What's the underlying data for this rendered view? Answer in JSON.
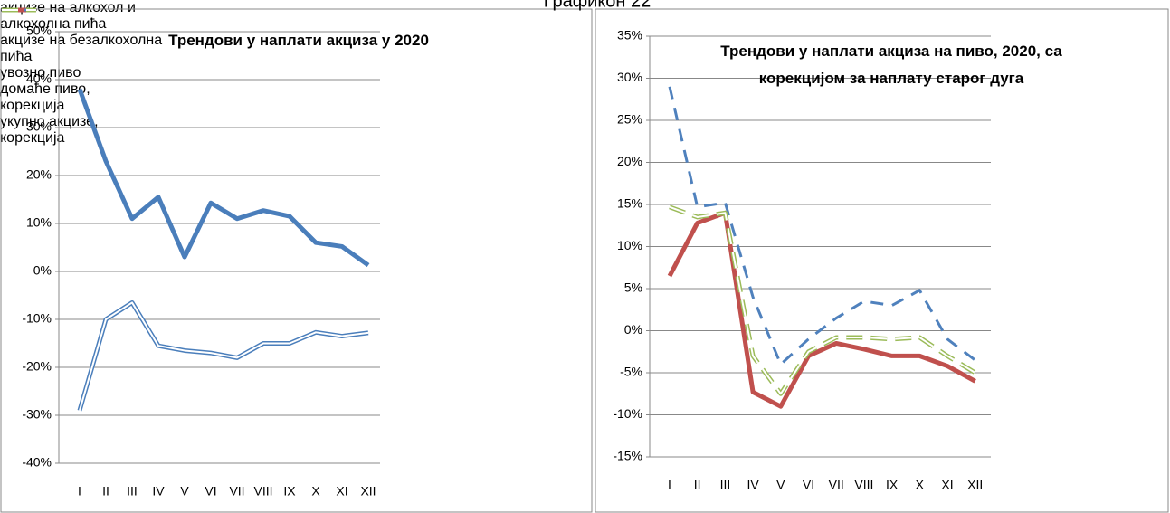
{
  "heading": "Графикон 22",
  "chart_data": [
    {
      "type": "line",
      "title": "Трендови у наплати акциза у 2020",
      "categories": [
        "I",
        "II",
        "III",
        "IV",
        "V",
        "VI",
        "VII",
        "VIII",
        "IX",
        "X",
        "XI",
        "XII"
      ],
      "series": [
        {
          "name": "акцизе на алкохол и алкохолна пића",
          "color": "#4a7ebb",
          "style": "solid",
          "values": [
            38,
            23,
            11,
            15.5,
            3,
            14.3,
            11,
            12.7,
            11.5,
            6,
            5.2,
            1.3
          ]
        },
        {
          "name": "акцизе на безалкохолна пића",
          "color": "#4a7ebb",
          "style": "double",
          "values": [
            -29,
            -10,
            -6.5,
            -15.5,
            -16.5,
            -17,
            -18,
            -15,
            -15,
            -12.7,
            -13.5,
            -12.8
          ]
        }
      ],
      "ylim": [
        -40,
        50
      ],
      "yticks": [
        {
          "value": -40,
          "label": "-40%"
        },
        {
          "value": -30,
          "label": "-30%"
        },
        {
          "value": -20,
          "label": "-20%"
        },
        {
          "value": -10,
          "label": "-10%"
        },
        {
          "value": 0,
          "label": "0%"
        },
        {
          "value": 10,
          "label": "10%"
        },
        {
          "value": 20,
          "label": "20%"
        },
        {
          "value": 30,
          "label": "30%"
        },
        {
          "value": 40,
          "label": "40%"
        },
        {
          "value": 50,
          "label": "50%"
        }
      ],
      "grid": true,
      "legend": "right"
    },
    {
      "type": "line",
      "title": "Трендови у наплати акциза на пиво, 2020, са корекцијом за наплату старог дуга",
      "categories": [
        "I",
        "II",
        "III",
        "IV",
        "V",
        "VI",
        "VII",
        "VIII",
        "IX",
        "X",
        "XI",
        "XII"
      ],
      "series": [
        {
          "name": "увозно пиво",
          "color": "#c0504d",
          "style": "solid",
          "values": [
            6.5,
            12.8,
            14,
            -7.3,
            -9,
            -3,
            -1.5,
            -2.2,
            -3,
            -3,
            -4.2,
            -6
          ]
        },
        {
          "name": "домаће пиво, корекција",
          "color": "#4f81bd",
          "style": "dashed",
          "values": [
            29,
            14.7,
            15.2,
            4,
            -4,
            -1,
            1.5,
            3.5,
            3,
            4.8,
            -1,
            -3.5
          ]
        },
        {
          "name": "укупно акцизе, корекција",
          "color": "#9bbb59",
          "style": "dashed-double",
          "values": [
            14.7,
            13.5,
            14,
            -3,
            -7.5,
            -2.5,
            -0.8,
            -0.8,
            -1,
            -0.8,
            -3,
            -5
          ]
        }
      ],
      "ylim": [
        -15,
        35
      ],
      "yticks": [
        {
          "value": -15,
          "label": "-15%"
        },
        {
          "value": -10,
          "label": "-10%"
        },
        {
          "value": -5,
          "label": "-5%"
        },
        {
          "value": 0,
          "label": "0%"
        },
        {
          "value": 5,
          "label": "5%"
        },
        {
          "value": 10,
          "label": "10%"
        },
        {
          "value": 15,
          "label": "15%"
        },
        {
          "value": 20,
          "label": "20%"
        },
        {
          "value": 25,
          "label": "25%"
        },
        {
          "value": 30,
          "label": "30%"
        },
        {
          "value": 35,
          "label": "35%"
        }
      ],
      "grid": true,
      "legend": "right"
    }
  ]
}
